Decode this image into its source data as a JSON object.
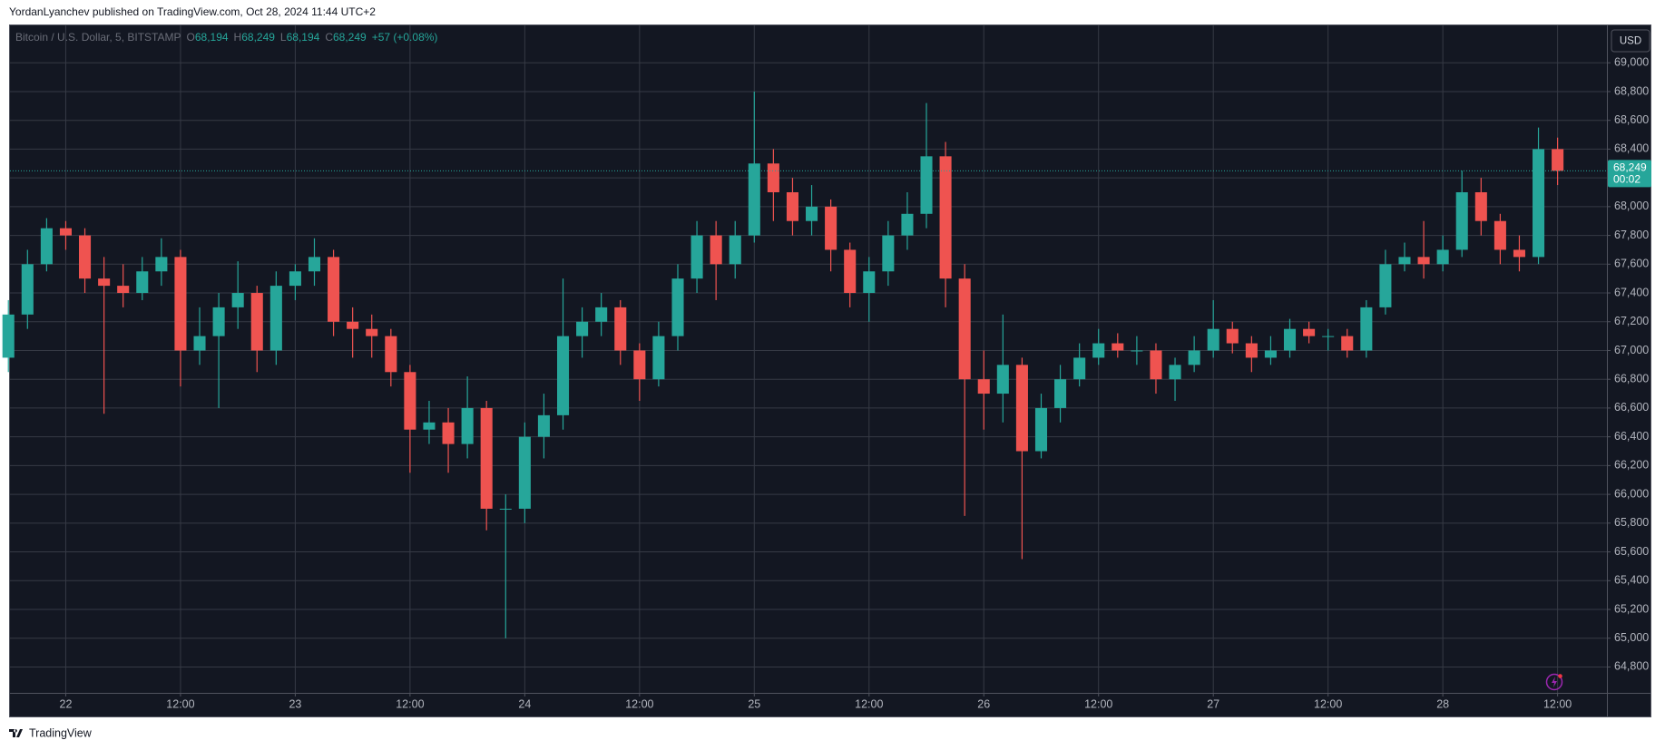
{
  "header": {
    "published": "YordanLyanchev published on TradingView.com, Oct 28, 2024 11:44 UTC+2"
  },
  "footer": {
    "brand": "TradingView"
  },
  "chart_data": {
    "type": "candlestick",
    "currency": "USD",
    "ohlc_legend": [
      {
        "label": "O",
        "value": "68,194"
      },
      {
        "label": "H",
        "value": "68,249"
      },
      {
        "label": "L",
        "value": "68,194"
      },
      {
        "label": "C",
        "value": "68,249"
      }
    ],
    "change": "+57 (+0.08%)",
    "last_price": {
      "value": 68249,
      "label": "68,249"
    },
    "countdown": "00:02",
    "grid": true,
    "xlim": [
      21.757,
      28.715
    ],
    "ylim": [
      64620,
      69260
    ],
    "xticks": [
      {
        "value": 22,
        "label": "22"
      },
      {
        "value": 22.5,
        "label": "12:00"
      },
      {
        "value": 23,
        "label": "23"
      },
      {
        "value": 23.5,
        "label": "12:00"
      },
      {
        "value": 24,
        "label": "24"
      },
      {
        "value": 24.5,
        "label": "12:00"
      },
      {
        "value": 25,
        "label": "25"
      },
      {
        "value": 25.5,
        "label": "12:00"
      },
      {
        "value": 26,
        "label": "26"
      },
      {
        "value": 26.5,
        "label": "12:00"
      },
      {
        "value": 27,
        "label": "27"
      },
      {
        "value": 27.5,
        "label": "12:00"
      },
      {
        "value": 28,
        "label": "28"
      },
      {
        "value": 28.5,
        "label": "12:00"
      }
    ],
    "yticks": [
      {
        "value": 64800,
        "label": "64,800"
      },
      {
        "value": 65000,
        "label": "65,000"
      },
      {
        "value": 65200,
        "label": "65,200"
      },
      {
        "value": 65400,
        "label": "65,400"
      },
      {
        "value": 65600,
        "label": "65,600"
      },
      {
        "value": 65800,
        "label": "65,800"
      },
      {
        "value": 66000,
        "label": "66,000"
      },
      {
        "value": 66200,
        "label": "66,200"
      },
      {
        "value": 66400,
        "label": "66,400"
      },
      {
        "value": 66600,
        "label": "66,600"
      },
      {
        "value": 66800,
        "label": "66,800"
      },
      {
        "value": 67000,
        "label": "67,000"
      },
      {
        "value": 67200,
        "label": "67,200"
      },
      {
        "value": 67400,
        "label": "67,400"
      },
      {
        "value": 67600,
        "label": "67,600"
      },
      {
        "value": 67800,
        "label": "67,800"
      },
      {
        "value": 68000,
        "label": "68,000"
      },
      {
        "value": 68200,
        "label": "68,200"
      },
      {
        "value": 68400,
        "label": "68,400"
      },
      {
        "value": 68600,
        "label": "68,600"
      },
      {
        "value": 68800,
        "label": "68,800"
      },
      {
        "value": 69000,
        "label": "69,000"
      }
    ],
    "x": [
      21.75,
      21.8333,
      21.9167,
      22,
      22.0833,
      22.1667,
      22.25,
      22.3333,
      22.4167,
      22.5,
      22.5833,
      22.6667,
      22.75,
      22.8333,
      22.9167,
      23,
      23.0833,
      23.1667,
      23.25,
      23.3333,
      23.4167,
      23.5,
      23.5833,
      23.6667,
      23.75,
      23.8333,
      23.9167,
      24,
      24.0833,
      24.1667,
      24.25,
      24.3333,
      24.4167,
      24.5,
      24.5833,
      24.6667,
      24.75,
      24.8333,
      24.9167,
      25,
      25.0833,
      25.1667,
      25.25,
      25.3333,
      25.4167,
      25.5,
      25.5833,
      25.6667,
      25.75,
      25.8333,
      25.9167,
      26,
      26.0833,
      26.1667,
      26.25,
      26.3333,
      26.4167,
      26.5,
      26.5833,
      26.6667,
      26.75,
      26.8333,
      26.9167,
      27,
      27.0833,
      27.1667,
      27.25,
      27.3333,
      27.4167,
      27.5,
      27.5833,
      27.6667,
      27.75,
      27.8333,
      27.9167,
      28,
      28.0833,
      28.1667,
      28.25,
      28.3333,
      28.4167,
      28.5
    ],
    "series": [
      {
        "name": "Bitcoin / U.S. Dollar, 5, BITSTAMP",
        "up_color": "#26a69a",
        "down_color": "#ef5350",
        "open": [
          66950,
          67250,
          67600,
          67850,
          67800,
          67500,
          67450,
          67400,
          67550,
          67650,
          67000,
          67100,
          67300,
          67400,
          67000,
          67450,
          67550,
          67650,
          67200,
          67150,
          67100,
          66850,
          66450,
          66500,
          66350,
          66600,
          65900,
          65900,
          66400,
          66550,
          67100,
          67200,
          67300,
          67000,
          66800,
          67100,
          67500,
          67800,
          67600,
          67800,
          68300,
          68100,
          67900,
          68000,
          67700,
          67400,
          67550,
          67800,
          67950,
          68350,
          67500,
          66800,
          66700,
          66900,
          66300,
          66600,
          66800,
          66950,
          67050,
          67000,
          67000,
          66800,
          66900,
          67000,
          67150,
          67050,
          66950,
          67000,
          67150,
          67100,
          67100,
          67000,
          67300,
          67600,
          67650,
          67600,
          67700,
          68100,
          67900,
          67700,
          67650,
          68400
        ],
        "high": [
          67350,
          67700,
          67920,
          67900,
          67850,
          67650,
          67600,
          67650,
          67780,
          67700,
          67300,
          67400,
          67620,
          67450,
          67550,
          67600,
          67780,
          67700,
          67300,
          67250,
          67150,
          66900,
          66650,
          66600,
          66820,
          66650,
          66000,
          66500,
          66700,
          67500,
          67300,
          67400,
          67350,
          67050,
          67200,
          67600,
          67900,
          67900,
          67900,
          68800,
          68400,
          68200,
          68150,
          68050,
          67750,
          67650,
          67900,
          68100,
          68720,
          68450,
          67600,
          67000,
          67250,
          66950,
          66700,
          66900,
          67050,
          67150,
          67120,
          67100,
          67050,
          66950,
          67100,
          67350,
          67200,
          67100,
          67100,
          67220,
          67200,
          67150,
          67150,
          67350,
          67700,
          67750,
          67900,
          67800,
          68250,
          68200,
          67950,
          67800,
          68550,
          68480
        ],
        "low": [
          66850,
          67150,
          67550,
          67700,
          67400,
          66560,
          67300,
          67350,
          67450,
          66750,
          66900,
          66600,
          67150,
          66850,
          66900,
          67350,
          67450,
          67100,
          66950,
          66950,
          66750,
          66150,
          66350,
          66150,
          66250,
          65750,
          65000,
          65800,
          66250,
          66450,
          66950,
          67100,
          66900,
          66650,
          66750,
          67000,
          67400,
          67350,
          67500,
          67750,
          67900,
          67800,
          67800,
          67550,
          67300,
          67200,
          67450,
          67700,
          67850,
          67300,
          65850,
          66450,
          66500,
          65550,
          66250,
          66500,
          66750,
          66900,
          66950,
          66900,
          66700,
          66650,
          66850,
          66950,
          66980,
          66850,
          66900,
          66950,
          67050,
          67000,
          66950,
          66950,
          67250,
          67550,
          67500,
          67550,
          67650,
          67800,
          67600,
          67550,
          67600,
          68150
        ],
        "close": [
          67250,
          67600,
          67850,
          67800,
          67500,
          67450,
          67400,
          67550,
          67650,
          67000,
          67100,
          67300,
          67400,
          67000,
          67450,
          67550,
          67650,
          67200,
          67150,
          67100,
          66850,
          66450,
          66500,
          66350,
          66600,
          65900,
          65900,
          66400,
          66550,
          67100,
          67200,
          67300,
          67000,
          66800,
          67100,
          67500,
          67800,
          67600,
          67800,
          68300,
          68100,
          67900,
          68000,
          67700,
          67400,
          67550,
          67800,
          67950,
          68350,
          67500,
          66800,
          66700,
          66900,
          66300,
          66600,
          66800,
          66950,
          67050,
          67000,
          67000,
          66800,
          66900,
          67000,
          67150,
          67050,
          66950,
          67000,
          67150,
          67100,
          67100,
          67000,
          67300,
          67600,
          67650,
          67600,
          67700,
          68100,
          67900,
          67700,
          67650,
          68400,
          68249
        ]
      }
    ]
  }
}
